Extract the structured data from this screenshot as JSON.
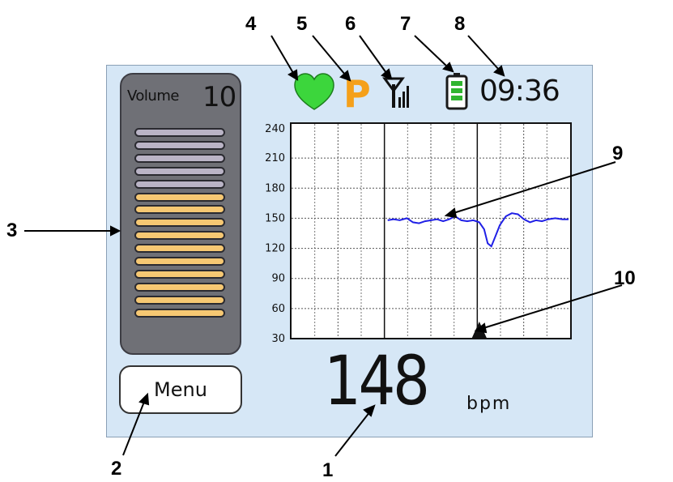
{
  "status": {
    "clock": "09:36",
    "heart": "heart-icon",
    "mode_letter": "P",
    "signal": "antenna-signal-icon",
    "battery": "battery-icon"
  },
  "volume": {
    "label": "Volume",
    "value": "10",
    "total_bars": 15,
    "level": 10
  },
  "menu": {
    "label": "Menu"
  },
  "reading": {
    "value": "148",
    "unit": "bpm"
  },
  "chart_data": {
    "type": "line",
    "yticks": [
      "240",
      "210",
      "180",
      "150",
      "120",
      "90",
      "60",
      "30"
    ],
    "ylim": [
      30,
      240
    ],
    "series": [
      {
        "values": [
          [
            0.0,
            148
          ],
          [
            0.5,
            149
          ],
          [
            1.0,
            148
          ],
          [
            1.6,
            150
          ],
          [
            2.1,
            146
          ],
          [
            2.6,
            145
          ],
          [
            3.1,
            147
          ],
          [
            3.6,
            148
          ],
          [
            4.1,
            149
          ],
          [
            4.6,
            147
          ],
          [
            5.1,
            149
          ],
          [
            5.6,
            152
          ],
          [
            6.1,
            148
          ],
          [
            6.6,
            147
          ],
          [
            7.1,
            148
          ],
          [
            7.6,
            146
          ],
          [
            8.0,
            139
          ],
          [
            8.3,
            125
          ],
          [
            8.6,
            122
          ],
          [
            8.9,
            131
          ],
          [
            9.3,
            143
          ],
          [
            9.8,
            152
          ],
          [
            10.3,
            155
          ],
          [
            10.8,
            154
          ],
          [
            11.3,
            149
          ],
          [
            11.8,
            146
          ],
          [
            12.3,
            148
          ],
          [
            12.8,
            147
          ],
          [
            13.3,
            149
          ],
          [
            13.9,
            150
          ],
          [
            14.5,
            149
          ],
          [
            15.0,
            149
          ]
        ],
        "color": "#2020e6"
      }
    ],
    "marker": {
      "x": 7.6,
      "label": "event-marker"
    },
    "grid": true
  },
  "callouts": [
    "1",
    "2",
    "3",
    "4",
    "5",
    "6",
    "7",
    "8",
    "9",
    "10"
  ],
  "colors": {
    "screen": "#d6e7f6",
    "heart": "#3cd63c",
    "mode_letter": "#f5a01a",
    "battery": "#2fb52f",
    "trace": "#2020e6"
  }
}
